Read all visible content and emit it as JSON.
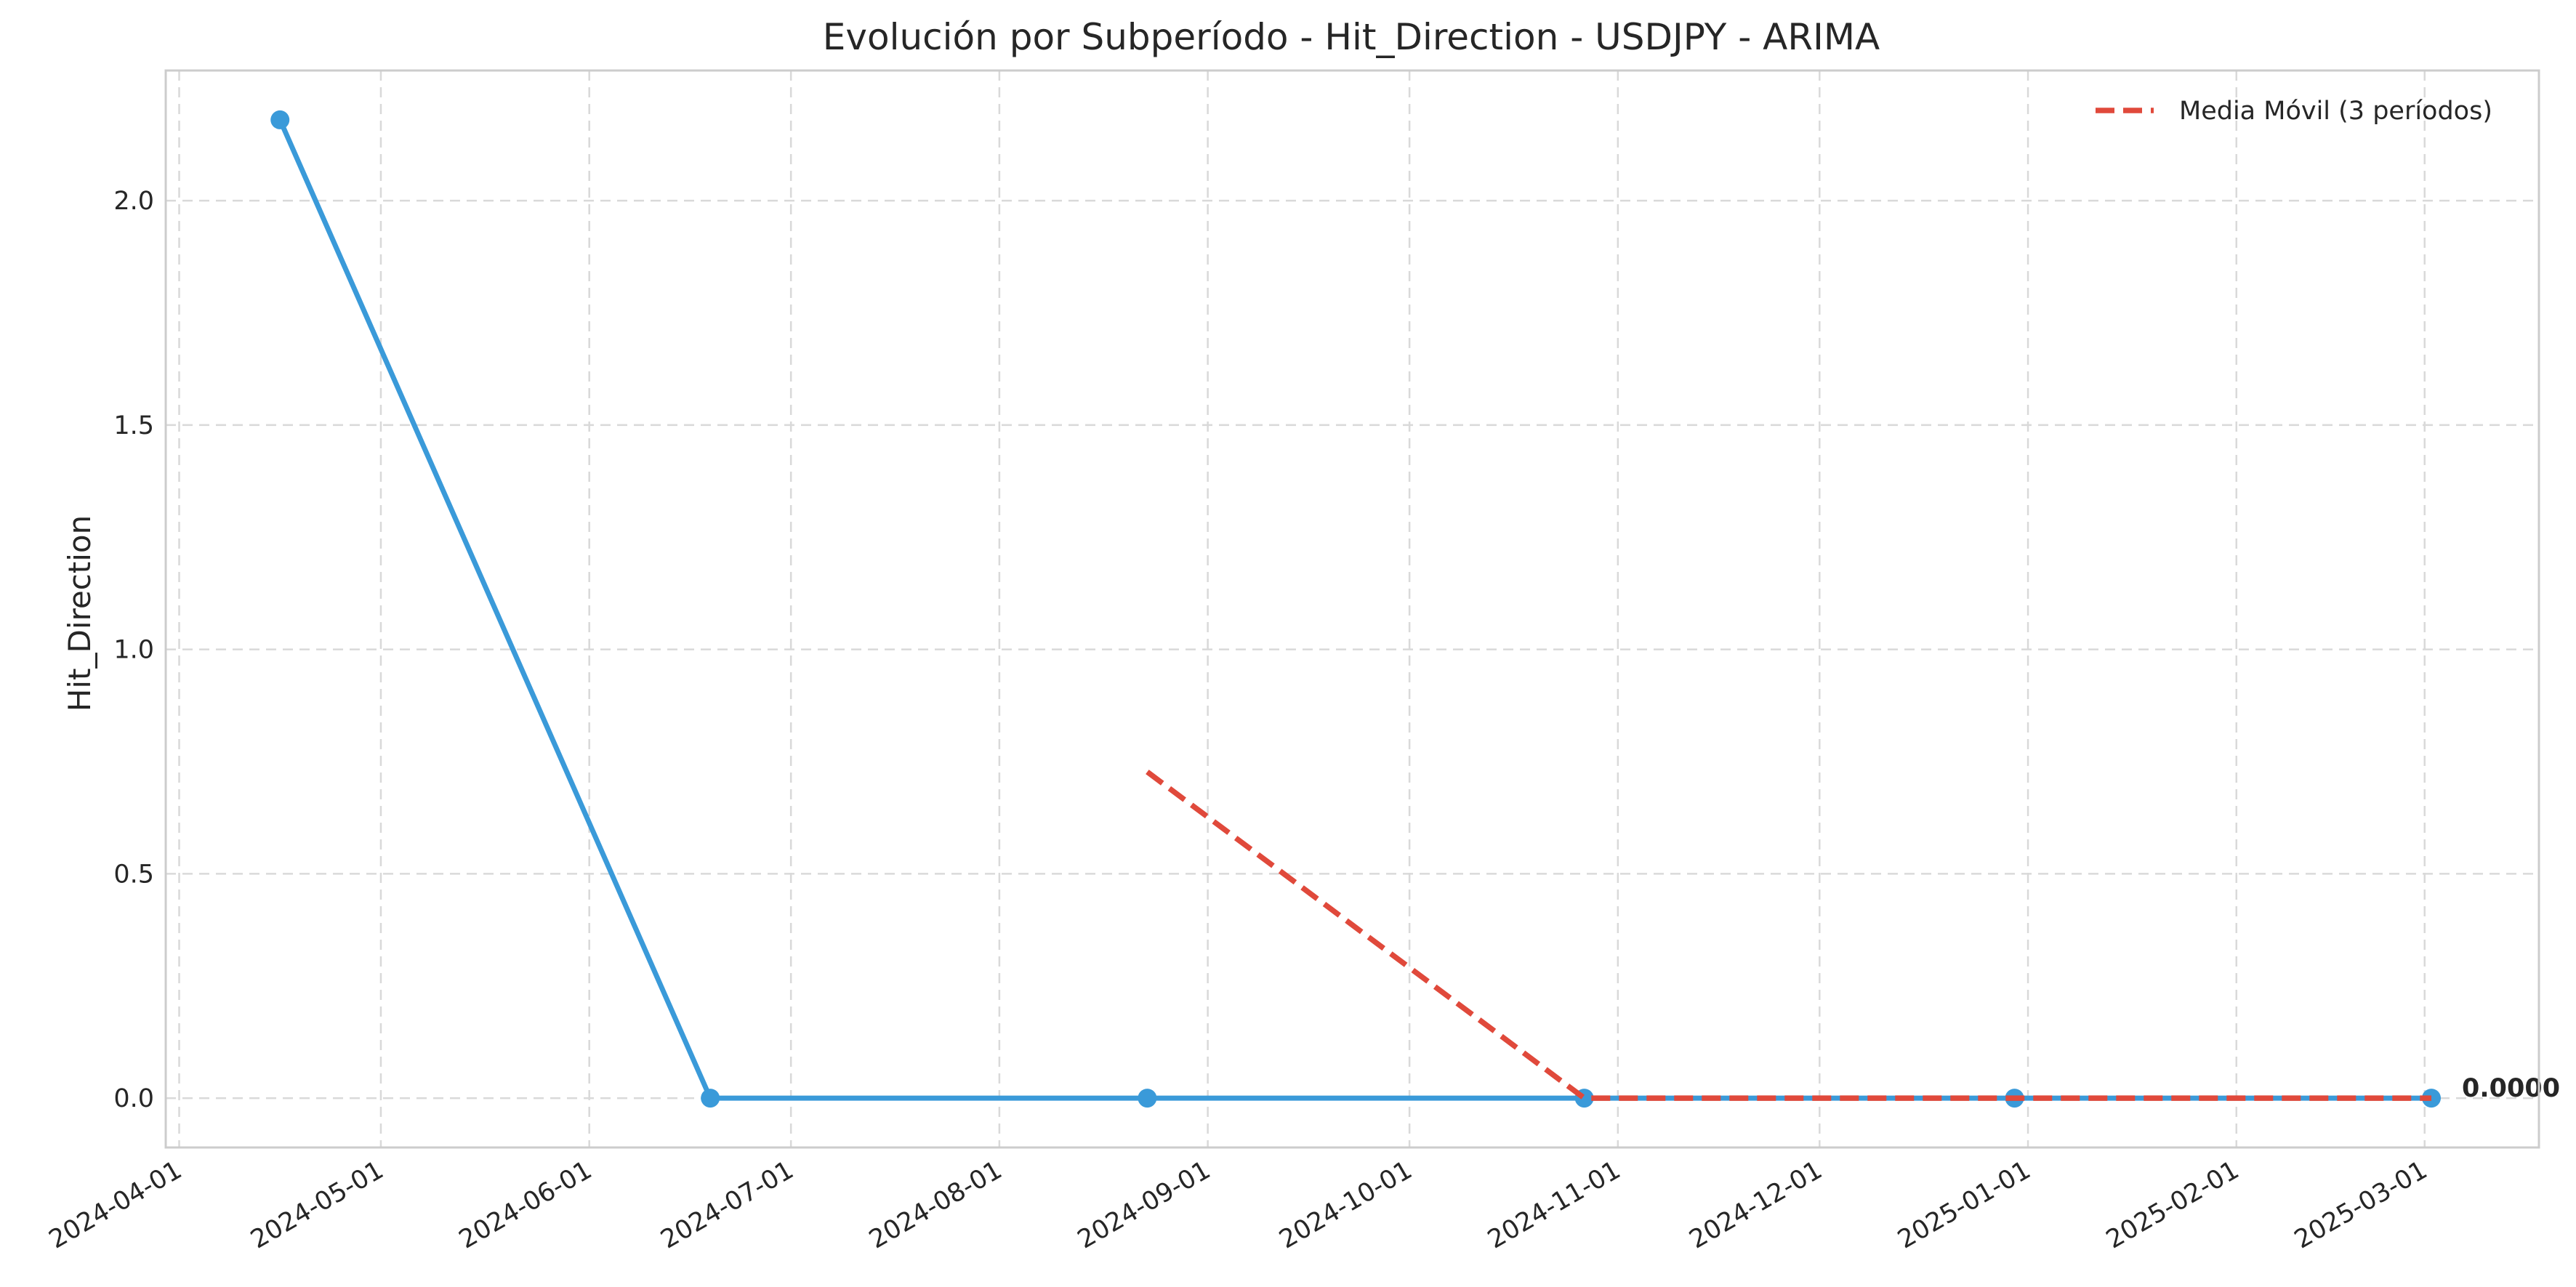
{
  "chart_data": {
    "type": "line",
    "title": "Evolución por Subperíodo - Hit_Direction - USDJPY - ARIMA",
    "xlabel": "",
    "ylabel": "Hit_Direction",
    "xlim": [
      "2024-03-30",
      "2025-03-18"
    ],
    "ylim": [
      -0.11,
      2.29
    ],
    "x_ticks": [
      "2024-04-01",
      "2024-05-01",
      "2024-06-01",
      "2024-07-01",
      "2024-08-01",
      "2024-09-01",
      "2024-10-01",
      "2024-11-01",
      "2024-12-01",
      "2025-01-01",
      "2025-02-01",
      "2025-03-01"
    ],
    "y_ticks": [
      0.0,
      0.5,
      1.0,
      1.5,
      2.0
    ],
    "y_tick_labels": [
      "0.0",
      "0.5",
      "1.0",
      "1.5",
      "2.0"
    ],
    "grid": true,
    "legend_position": "top-right",
    "series": [
      {
        "name": "",
        "style": "solid-markers",
        "color": "#3a9ad9",
        "points": [
          {
            "x": "2024-04-16",
            "y": 2.18
          },
          {
            "x": "2024-06-19",
            "y": 0.0
          },
          {
            "x": "2024-08-23",
            "y": 0.0
          },
          {
            "x": "2024-10-27",
            "y": 0.0
          },
          {
            "x": "2024-12-30",
            "y": 0.0
          },
          {
            "x": "2025-03-02",
            "y": 0.0
          }
        ]
      },
      {
        "name": "Media Móvil (3 períodos)",
        "style": "dashed",
        "color": "#e0493b",
        "points": [
          {
            "x": "2024-08-23",
            "y": 0.727
          },
          {
            "x": "2024-10-27",
            "y": 0.0
          },
          {
            "x": "2024-12-30",
            "y": 0.0
          },
          {
            "x": "2025-03-02",
            "y": 0.0
          }
        ]
      }
    ],
    "annotations": [
      {
        "text": "0.0000",
        "x": "2025-03-02",
        "y": 0.0
      }
    ]
  }
}
